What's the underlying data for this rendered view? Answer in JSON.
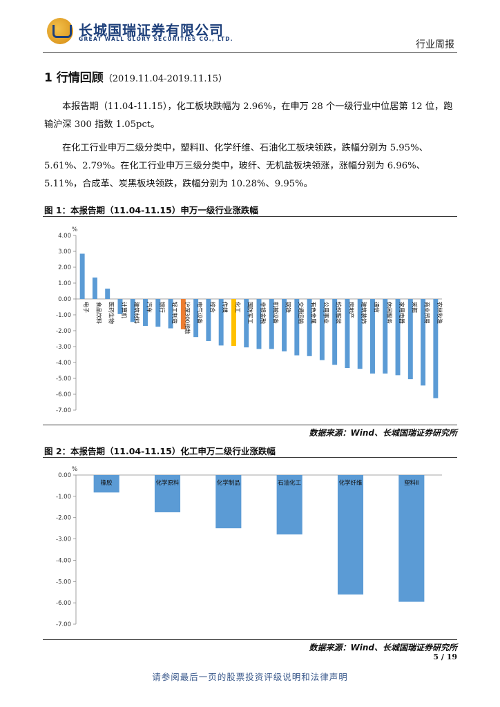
{
  "header": {
    "company_cn": "长城国瑞证券有限公司",
    "company_en": "GREAT WALL GLORY SECURITIES CO., LTD.",
    "report_type": "行业周报"
  },
  "section": {
    "title": "1 行情回顾",
    "dates": "（2019.11.04-2019.11.15）"
  },
  "paragraphs": [
    "本报告期（11.04-11.15），化工板块跌幅为 2.96%，在申万 28 个一级行业中位居第 12 位，跑输沪深 300 指数 1.05pct。",
    "在化工行业申万二级分类中，塑料Ⅱ、化学纤维、石油化工板块领跌，跌幅分别为 5.95%、5.61%、2.79%。在化工行业申万三级分类中，玻纤、无机盐板块领涨，涨幅分别为 6.96%、5.11%，合成革、炭黑板块领跌，跌幅分别为 10.28%、9.95%。"
  ],
  "figure1": {
    "title": "图 1：本报告期（11.04-11.15）申万一级行业涨跌幅",
    "source": "数据来源：Wind、长城国瑞证券研究所"
  },
  "figure2": {
    "title": "图 2：本报告期（11.04-11.15）化工申万二级行业涨跌幅",
    "source": "数据来源：Wind、长城国瑞证券研究所"
  },
  "chart_data": [
    {
      "type": "bar",
      "ylabel": "%",
      "ylim": [
        -7,
        4
      ],
      "yticks": [
        "4.00",
        "3.00",
        "2.00",
        "1.00",
        "0.00",
        "-1.00",
        "-2.00",
        "-3.00",
        "-4.00",
        "-5.00",
        "-6.00",
        "-7.00"
      ],
      "grid": false,
      "bar_color": "#5b9bd5",
      "highlight_colors": {
        "化工": "#ffc000",
        "沪深300指数": "#ed7d31"
      },
      "categories": [
        "电子",
        "食品饮料",
        "医药生物",
        "计算机",
        "建筑材料",
        "汽车",
        "银行",
        "轻工制造",
        "沪深300指数",
        "电气设备",
        "综合",
        "传媒",
        "化工",
        "国防军工",
        "非银金融",
        "机械设备",
        "钢铁",
        "交通运输",
        "有色金属",
        "公用事业",
        "纺织服装",
        "房地产",
        "建筑装饰",
        "通信",
        "休闲服务",
        "家用电器",
        "采掘",
        "商业贸易",
        "农林牧渔"
      ],
      "values": [
        2.85,
        1.35,
        0.65,
        -0.95,
        -1.45,
        -1.7,
        -1.75,
        -1.85,
        -1.91,
        -2.4,
        -2.65,
        -2.93,
        -2.96,
        -3.05,
        -3.15,
        -3.15,
        -3.3,
        -3.55,
        -3.6,
        -3.85,
        -4.15,
        -4.35,
        -4.4,
        -4.7,
        -4.7,
        -4.8,
        -5.05,
        -5.45,
        -6.25
      ]
    },
    {
      "type": "bar",
      "ylabel": "%",
      "ylim": [
        -7,
        0
      ],
      "yticks": [
        "0.00",
        "-1.00",
        "-2.00",
        "-3.00",
        "-4.00",
        "-5.00",
        "-6.00",
        "-7.00"
      ],
      "grid": false,
      "bar_color": "#5b9bd5",
      "categories": [
        "橡胶",
        "化学原料",
        "化学制品",
        "石油化工",
        "化学纤维",
        "塑料Ⅱ"
      ],
      "values": [
        -0.82,
        -1.75,
        -2.5,
        -2.79,
        -5.61,
        -5.95
      ]
    }
  ],
  "page": "5 / 19",
  "footer": "请参阅最后一页的股票投资评级说明和法律声明"
}
